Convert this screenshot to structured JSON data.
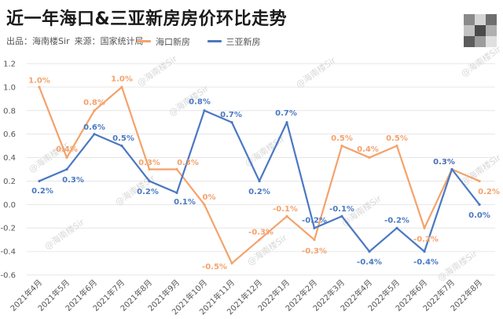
{
  "header": {
    "title": "近一年海口&三亚新房房价环比走势",
    "source_prefix": "出品：海南楼Sir",
    "source": "来源：国家统计局"
  },
  "watermark": "@海南楼Sir",
  "chart_data": {
    "type": "line",
    "categories": [
      "2021年4月",
      "2021年5月",
      "2021年6月",
      "2021年7月",
      "2021年8月",
      "2021年9月",
      "2021年10月",
      "2021年11月",
      "2021年12月",
      "2022年1月",
      "2022年2月",
      "2022年3月",
      "2022年4月",
      "2022年5月",
      "2022年6月",
      "2022年7月",
      "2022年8月"
    ],
    "series": [
      {
        "name": "海口新房",
        "color": "#f4a26b",
        "values": [
          1.0,
          0.4,
          0.8,
          1.0,
          0.3,
          0.3,
          0,
          -0.5,
          -0.3,
          -0.1,
          -0.3,
          0.5,
          0.4,
          0.5,
          -0.2,
          0.3,
          0.2
        ]
      },
      {
        "name": "三亚新房",
        "color": "#4a78c2",
        "values": [
          0.2,
          0.3,
          0.6,
          0.5,
          0.2,
          0.1,
          0.8,
          0.7,
          0.2,
          0.7,
          -0.2,
          -0.1,
          -0.4,
          -0.2,
          -0.4,
          0.3,
          0.0
        ]
      }
    ],
    "data_labels": [
      [
        "1.0%",
        "0.4%",
        "0.8%",
        "1.0%",
        "0.3%",
        "0.3%",
        "0%",
        "-0.5%",
        "-0.3%",
        "-0.1%",
        "-0.3%",
        "0.5%",
        "0.4%",
        "0.5%",
        "-0.2%",
        "0.3%",
        "0.2%"
      ],
      [
        "0.2%",
        "0.3%",
        "0.6%",
        "0.5%",
        "0.2%",
        "0.1%",
        "0.8%",
        "0.7%",
        "0.2%",
        "0.7%",
        "-0.2%",
        "-0.1%",
        "-0.4%",
        "-0.2%",
        "-0.4%",
        "0.3%",
        "0.0%"
      ]
    ],
    "yticks": [
      "1.2",
      "1.0",
      "0.8",
      "0.6",
      "0.4",
      "0.2",
      "0.0",
      "-0.2",
      "-0.4",
      "-0.6"
    ],
    "ylim": [
      -0.6,
      1.2
    ],
    "grid": true,
    "legend_position": "top"
  }
}
